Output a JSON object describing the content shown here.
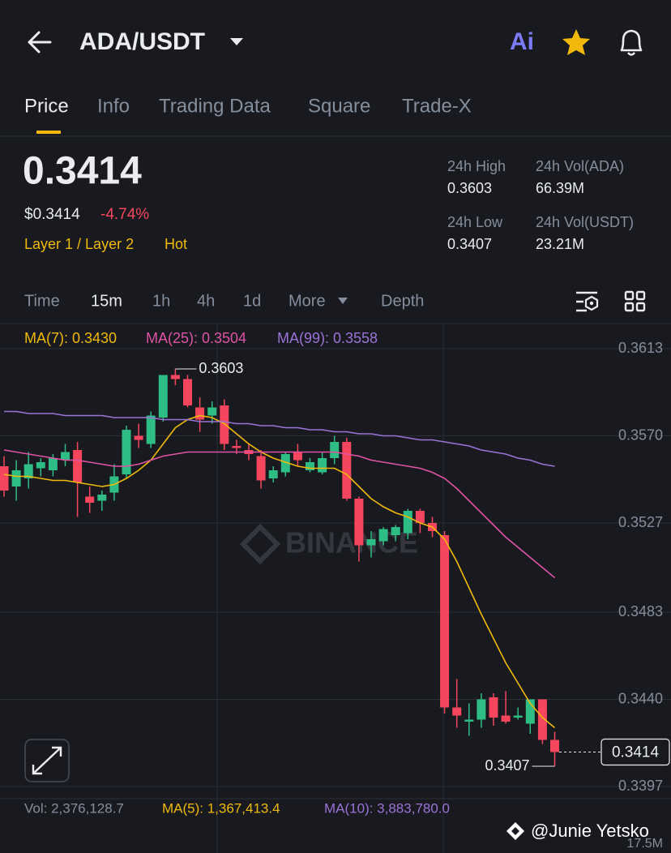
{
  "header": {
    "pair": "ADA/USDT",
    "ai_button": "Ai"
  },
  "tabs": [
    "Price",
    "Info",
    "Trading Data",
    "Square",
    "Trade-X"
  ],
  "ticker": {
    "price": "0.3414",
    "usd_price": "$0.3414",
    "change": "-4.74%",
    "tags": [
      "Layer 1 / Layer 2",
      "Hot"
    ],
    "stats": [
      {
        "label": "24h High",
        "value": "0.3603"
      },
      {
        "label": "24h Vol(ADA)",
        "value": "66.39M"
      },
      {
        "label": "24h Low",
        "value": "0.3407"
      },
      {
        "label": "24h Vol(USDT)",
        "value": "23.21M"
      }
    ]
  },
  "intervals": [
    "Time",
    "15m",
    "1h",
    "4h",
    "1d",
    "More"
  ],
  "depth": "Depth",
  "ma_legend": [
    {
      "text": "MA(7): 0.3430",
      "color": "#f0b90b"
    },
    {
      "text": "MA(25): 0.3504",
      "color": "#e052a4"
    },
    {
      "text": "MA(99): 0.3558",
      "color": "#9b73d6"
    }
  ],
  "chart_data": {
    "type": "candlestick",
    "open": [
      0.3555,
      0.3545,
      0.3549,
      0.3554,
      0.3553,
      0.3558,
      0.3563,
      0.354,
      0.3538,
      0.3542,
      0.3551,
      0.357,
      0.3566,
      0.3579,
      0.36,
      0.3598,
      0.3584,
      0.358,
      0.3585,
      0.3565,
      0.3563,
      0.356,
      0.3549,
      0.3552,
      0.3562,
      0.3553,
      0.3552,
      0.3559,
      0.3567,
      0.3539,
      0.3516,
      0.3518,
      0.3521,
      0.3522,
      0.3533,
      0.3527,
      0.3521,
      0.3436,
      0.3429,
      0.343,
      0.3441,
      0.3432,
      0.3431,
      0.3428,
      0.344,
      0.342
    ],
    "high": [
      0.356,
      0.3558,
      0.3562,
      0.3559,
      0.3561,
      0.3566,
      0.3567,
      0.3545,
      0.3543,
      0.3556,
      0.3575,
      0.3576,
      0.3582,
      0.36,
      0.3603,
      0.36,
      0.3589,
      0.3587,
      0.3588,
      0.3568,
      0.3566,
      0.3563,
      0.3555,
      0.3562,
      0.3566,
      0.3559,
      0.3562,
      0.357,
      0.3569,
      0.354,
      0.3523,
      0.3525,
      0.3526,
      0.3534,
      0.3534,
      0.353,
      0.3523,
      0.345,
      0.3438,
      0.3443,
      0.3443,
      0.3444,
      0.3436,
      0.344,
      0.344,
      0.3424
    ],
    "low": [
      0.354,
      0.3538,
      0.3544,
      0.355,
      0.355,
      0.3555,
      0.353,
      0.3532,
      0.3533,
      0.3538,
      0.3549,
      0.3564,
      0.3564,
      0.3577,
      0.3595,
      0.3584,
      0.3572,
      0.3576,
      0.3563,
      0.3561,
      0.3558,
      0.3544,
      0.3547,
      0.355,
      0.3555,
      0.3552,
      0.3551,
      0.3556,
      0.3538,
      0.3508,
      0.351,
      0.3516,
      0.3518,
      0.3519,
      0.3522,
      0.352,
      0.3433,
      0.3426,
      0.3422,
      0.3426,
      0.3427,
      0.3428,
      0.343,
      0.3423,
      0.3418,
      0.3407
    ],
    "close": [
      0.3543,
      0.3553,
      0.3556,
      0.3557,
      0.3559,
      0.3562,
      0.3547,
      0.3537,
      0.3541,
      0.355,
      0.3573,
      0.3568,
      0.358,
      0.36,
      0.3598,
      0.3585,
      0.3578,
      0.3584,
      0.3566,
      0.3564,
      0.3561,
      0.3548,
      0.3553,
      0.3561,
      0.3558,
      0.3557,
      0.3559,
      0.3567,
      0.3539,
      0.3516,
      0.3519,
      0.3524,
      0.3525,
      0.3533,
      0.3527,
      0.3523,
      0.3436,
      0.3432,
      0.343,
      0.344,
      0.3431,
      0.3429,
      0.3432,
      0.344,
      0.342,
      0.3414
    ],
    "up_color": "#2ebd85",
    "down_color": "#f6465d",
    "lines": [
      {
        "color": "#f0b90b",
        "values": [
          0.3551,
          0.355,
          0.355,
          0.3549,
          0.3548,
          0.3548,
          0.3547,
          0.3546,
          0.3545,
          0.3546,
          0.3549,
          0.3553,
          0.3558,
          0.3566,
          0.3574,
          0.3578,
          0.358,
          0.3579,
          0.3576,
          0.3571,
          0.3566,
          0.3562,
          0.3559,
          0.3557,
          0.3555,
          0.3554,
          0.3554,
          0.3554,
          0.3551,
          0.3545,
          0.3539,
          0.3535,
          0.3532,
          0.353,
          0.3527,
          0.3525,
          0.3519,
          0.3508,
          0.3495,
          0.3482,
          0.347,
          0.3458,
          0.3448,
          0.3438,
          0.3431,
          0.3426
        ]
      },
      {
        "color": "#e052a4",
        "values": [
          0.3563,
          0.3562,
          0.3561,
          0.356,
          0.3559,
          0.3558,
          0.3558,
          0.3557,
          0.3556,
          0.3555,
          0.3555,
          0.3556,
          0.3558,
          0.356,
          0.3561,
          0.3562,
          0.3562,
          0.3562,
          0.3562,
          0.3562,
          0.3562,
          0.3562,
          0.3562,
          0.3562,
          0.3562,
          0.3562,
          0.3562,
          0.3562,
          0.3561,
          0.356,
          0.3558,
          0.3557,
          0.3556,
          0.3555,
          0.3554,
          0.3552,
          0.3549,
          0.3544,
          0.3538,
          0.3532,
          0.3526,
          0.352,
          0.3515,
          0.351,
          0.3505,
          0.35
        ]
      },
      {
        "color": "#9b73d6",
        "values": [
          0.3582,
          0.3582,
          0.3581,
          0.3581,
          0.3581,
          0.358,
          0.358,
          0.358,
          0.358,
          0.3579,
          0.3579,
          0.3579,
          0.3579,
          0.3578,
          0.3578,
          0.3578,
          0.3577,
          0.3577,
          0.3577,
          0.3576,
          0.3576,
          0.3575,
          0.3575,
          0.3574,
          0.3574,
          0.3573,
          0.3573,
          0.3572,
          0.3572,
          0.3571,
          0.3571,
          0.357,
          0.357,
          0.3569,
          0.3568,
          0.3568,
          0.3567,
          0.3566,
          0.3565,
          0.3563,
          0.3562,
          0.3561,
          0.3559,
          0.3558,
          0.3556,
          0.3555
        ]
      }
    ],
    "ylim": [
      0.3391,
      0.3625
    ],
    "yticks": [
      0.3613,
      {
        "value": 0.357,
        "label": "0.3570"
      },
      0.3527,
      0.3483,
      {
        "value": 0.344,
        "label": "0.3440"
      },
      0.3397
    ],
    "grid": true,
    "high_marker": 0.3603,
    "low_marker": 0.3407,
    "last_price": 0.3414,
    "watermark": "BINANCE"
  },
  "vol_legend": [
    {
      "text": "Vol: 2,376,128.7",
      "color": "#848e9c"
    },
    {
      "text": "MA(5): 1,367,413.4",
      "color": "#f0b90b"
    },
    {
      "text": "MA(10): 3,883,780.0",
      "color": "#9b73d6"
    }
  ],
  "vol_axis_label": "17.5M",
  "credit": "@Junie Yetsko"
}
